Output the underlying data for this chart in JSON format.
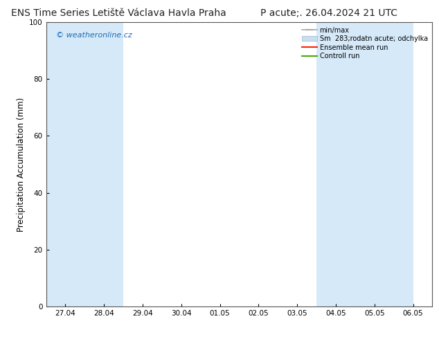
{
  "title_left": "ENS Time Series Letiště Václava Havla Praha",
  "title_right": "P acute;. 26.04.2024 21 UTC",
  "ylabel": "Precipitation Accumulation (mm)",
  "watermark": "© weatheronline.cz",
  "watermark_color": "#1a6bb5",
  "ylim": [
    0,
    100
  ],
  "yticks": [
    0,
    20,
    40,
    60,
    80,
    100
  ],
  "xtick_labels": [
    "27.04",
    "28.04",
    "29.04",
    "30.04",
    "01.05",
    "02.05",
    "03.05",
    "04.05",
    "05.05",
    "06.05"
  ],
  "background_color": "#ffffff",
  "plot_bg_color": "#ffffff",
  "band_color": "#d6e9f8",
  "legend_minmax_color": "#aaaaaa",
  "legend_sm_color": "#c8dff0",
  "legend_ensemble_color": "#ff2200",
  "legend_control_color": "#44aa00",
  "title_fontsize": 10,
  "tick_fontsize": 7.5,
  "ylabel_fontsize": 8.5,
  "watermark_fontsize": 8
}
